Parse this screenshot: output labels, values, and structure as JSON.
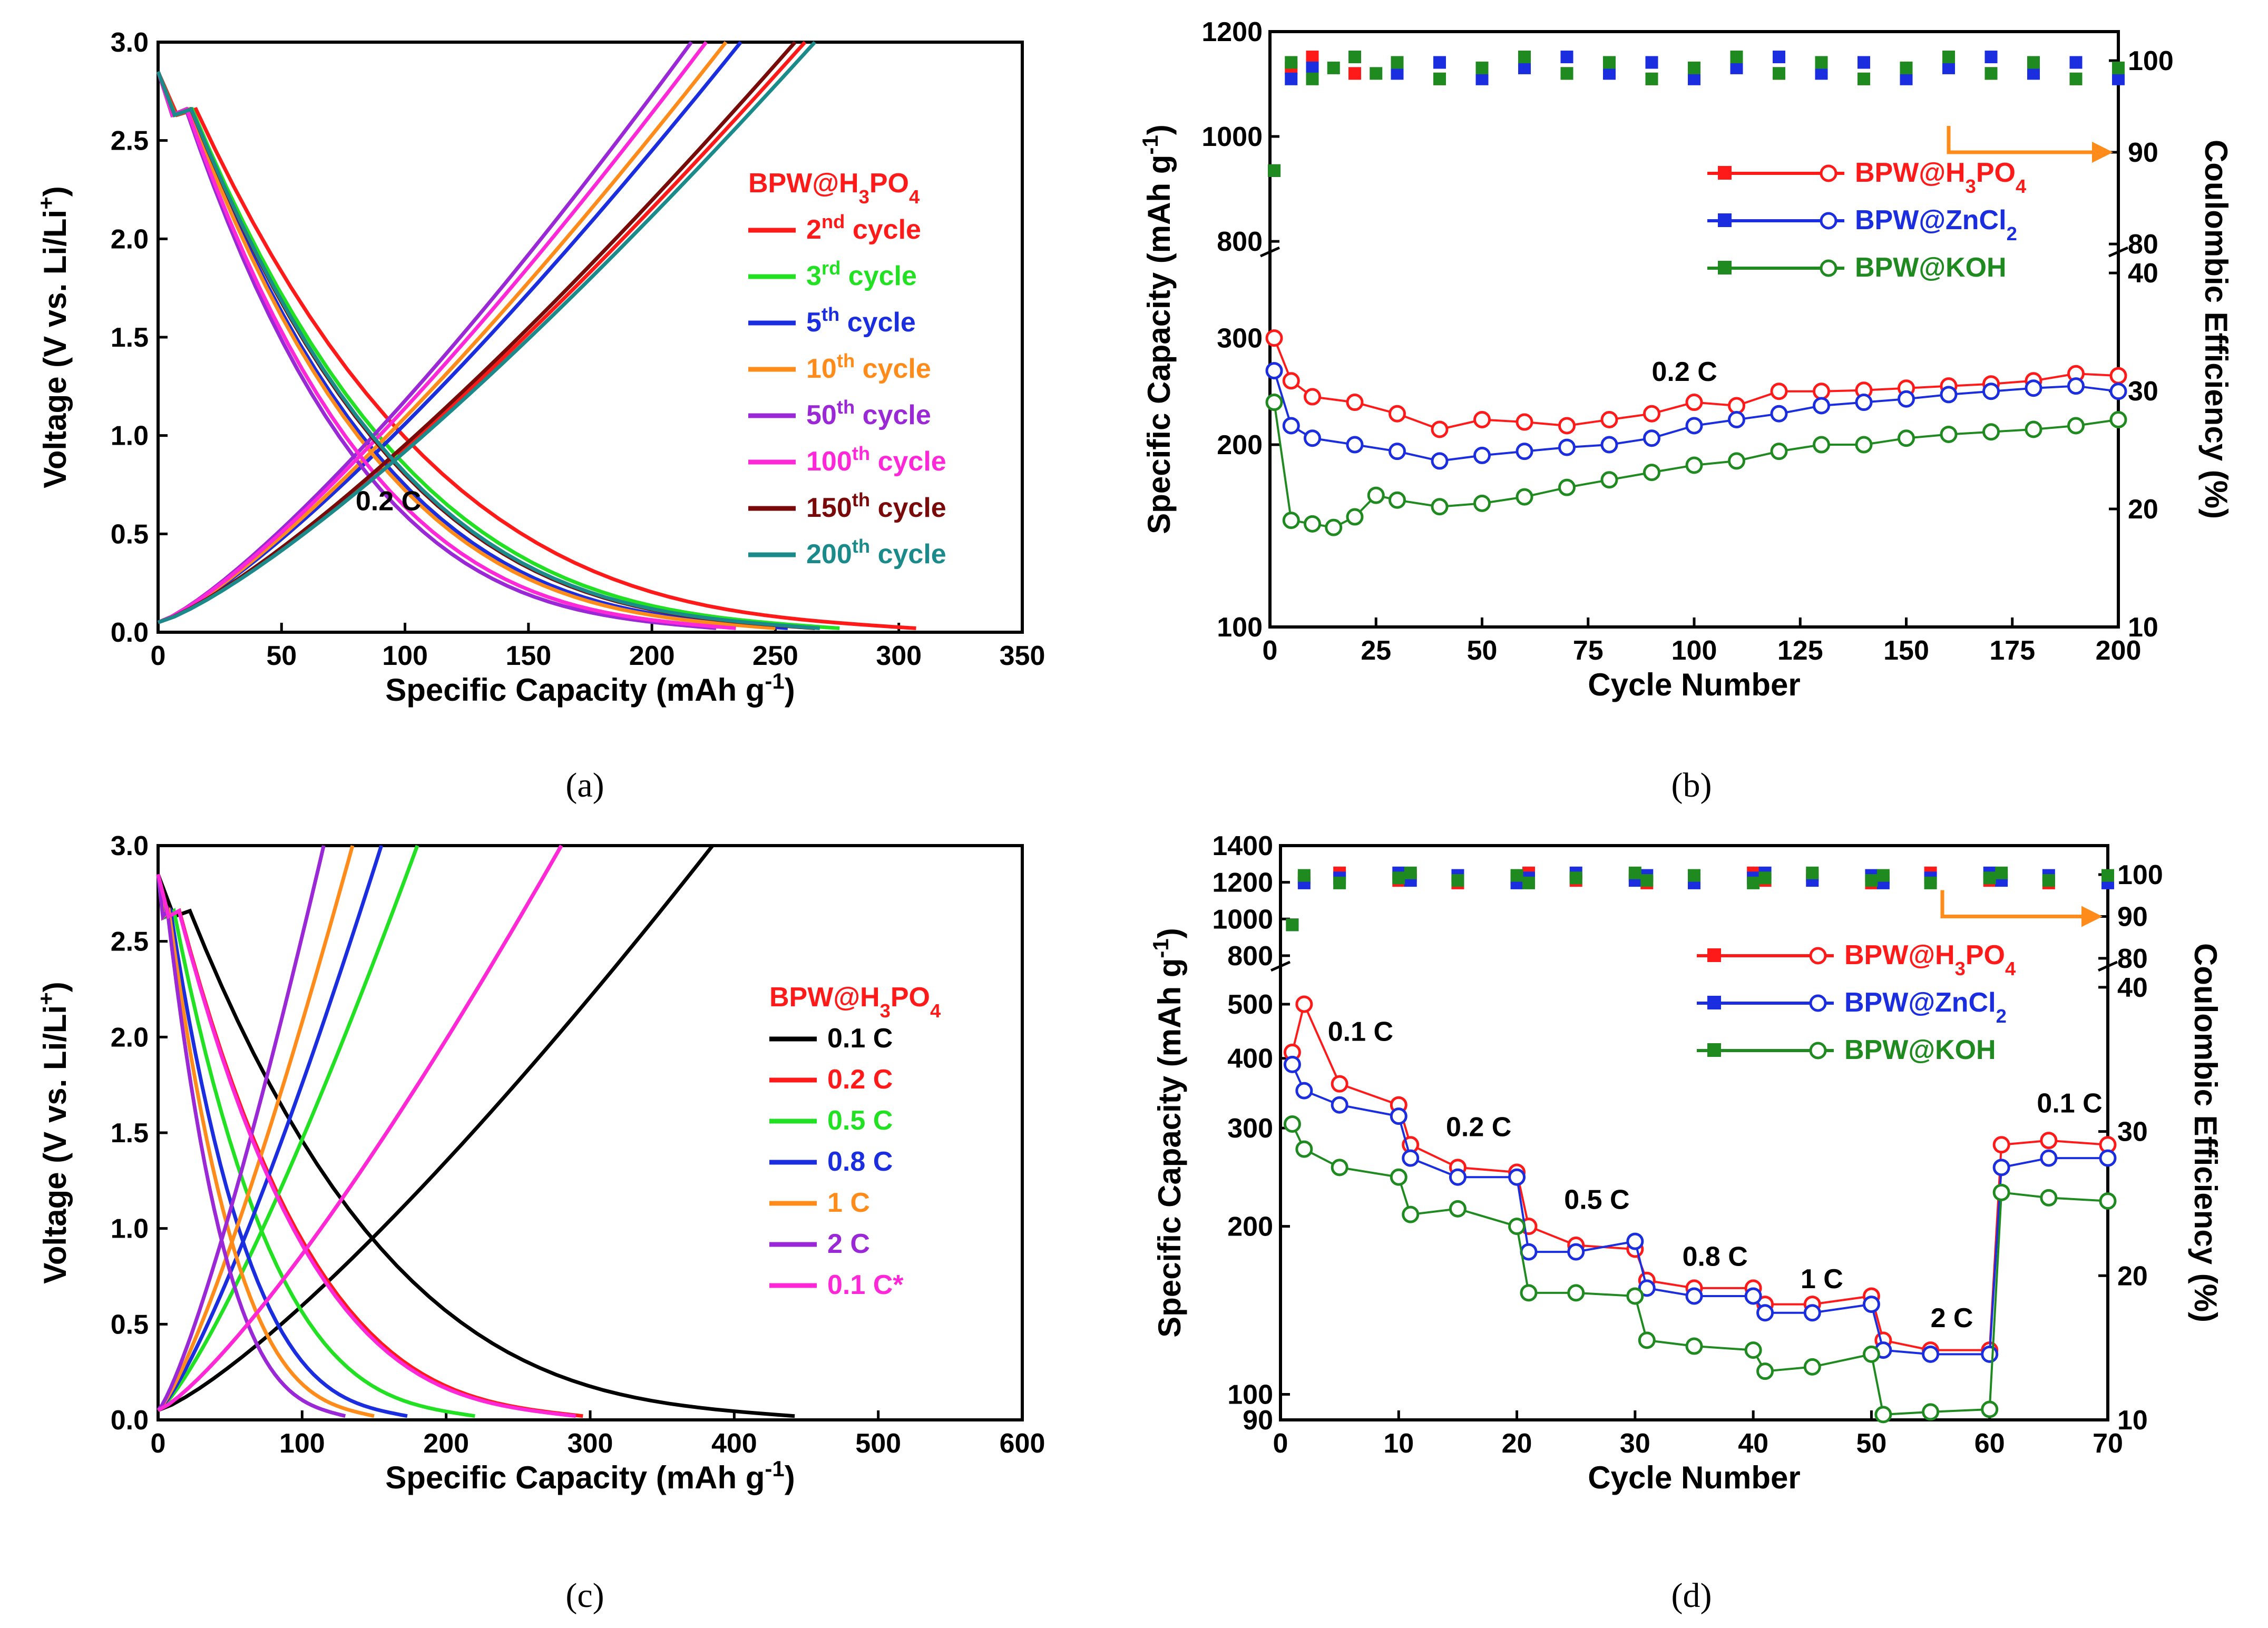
{
  "figure_captions": [
    "(a)",
    "(b)",
    "(c)",
    "(d)"
  ],
  "chart_data": [
    {
      "id": "a",
      "type": "line",
      "xlabel": "Specific Capacity (mAh g-1)",
      "ylabel": "Voltage (V vs. Li/Li+)",
      "xlim": [
        0,
        350
      ],
      "ylim": [
        0,
        3.0
      ],
      "xticks": [
        "0",
        "50",
        "100",
        "150",
        "200",
        "250",
        "300",
        "350"
      ],
      "yticks": [
        "0.0",
        "0.5",
        "1.0",
        "1.5",
        "2.0",
        "2.5",
        "3.0"
      ],
      "legend_title": "BPW@H3PO4",
      "legend_title_color": "#ff1a1a",
      "annotation": "0.2 C",
      "series": [
        {
          "name": "2nd cycle",
          "color": "#ff1a1a",
          "charge_end": 262,
          "discharge_end": 307
        },
        {
          "name": "3rd cycle",
          "color": "#22e022",
          "charge_end": 258,
          "discharge_end": 276
        },
        {
          "name": "5th cycle",
          "color": "#1a2ee0",
          "charge_end": 236,
          "discharge_end": 255
        },
        {
          "name": "10th cycle",
          "color": "#ff8c1a",
          "charge_end": 230,
          "discharge_end": 250
        },
        {
          "name": "50th cycle",
          "color": "#9a28d6",
          "charge_end": 216,
          "discharge_end": 226
        },
        {
          "name": "100th cycle",
          "color": "#ff28d8",
          "charge_end": 222,
          "discharge_end": 234
        },
        {
          "name": "150th cycle",
          "color": "#7a0a0a",
          "charge_end": 258,
          "discharge_end": 266
        },
        {
          "name": "200th cycle",
          "color": "#1a8a8a",
          "charge_end": 266,
          "discharge_end": 268
        }
      ]
    },
    {
      "id": "b",
      "type": "scatter",
      "xlabel": "Cycle Number",
      "ylabel": "Specific Capacity (mAh g-1)",
      "y2label": "Coulombic Efficiency (%)",
      "xlim": [
        0,
        200
      ],
      "ylim": [
        100,
        1200
      ],
      "xticks": [
        "0",
        "25",
        "50",
        "75",
        "100",
        "125",
        "150",
        "175",
        "200"
      ],
      "yticks_left": [
        "100",
        "200",
        "300",
        "800",
        "1000",
        "1200"
      ],
      "yticks_right": [
        "10",
        "20",
        "30",
        "40",
        "80",
        "90",
        "100"
      ],
      "annotation": "0.2 C",
      "series": [
        {
          "name": "BPW@H3PO4",
          "color": "#ff1a1a",
          "points": [
            [
              1,
              300
            ],
            [
              5,
              255
            ],
            [
              10,
              240
            ],
            [
              20,
              235
            ],
            [
              30,
              225
            ],
            [
              40,
              212
            ],
            [
              50,
              220
            ],
            [
              60,
              218
            ],
            [
              70,
              215
            ],
            [
              80,
              220
            ],
            [
              90,
              225
            ],
            [
              100,
              235
            ],
            [
              110,
              232
            ],
            [
              120,
              245
            ],
            [
              130,
              245
            ],
            [
              140,
              246
            ],
            [
              150,
              248
            ],
            [
              160,
              250
            ],
            [
              170,
              252
            ],
            [
              180,
              255
            ],
            [
              190,
              262
            ],
            [
              200,
              260
            ]
          ]
        },
        {
          "name": "BPW@ZnCl2",
          "color": "#1a2ee0",
          "points": [
            [
              1,
              265
            ],
            [
              5,
              215
            ],
            [
              10,
              205
            ],
            [
              20,
              200
            ],
            [
              30,
              195
            ],
            [
              40,
              188
            ],
            [
              50,
              192
            ],
            [
              60,
              195
            ],
            [
              70,
              198
            ],
            [
              80,
              200
            ],
            [
              90,
              205
            ],
            [
              100,
              215
            ],
            [
              110,
              220
            ],
            [
              120,
              225
            ],
            [
              130,
              232
            ],
            [
              140,
              235
            ],
            [
              150,
              238
            ],
            [
              160,
              242
            ],
            [
              170,
              245
            ],
            [
              180,
              248
            ],
            [
              190,
              250
            ],
            [
              200,
              245
            ]
          ]
        },
        {
          "name": "BPW@KOH",
          "color": "#1f8a1f",
          "points": [
            [
              1,
              235
            ],
            [
              5,
              150
            ],
            [
              10,
              148
            ],
            [
              15,
              146
            ],
            [
              20,
              152
            ],
            [
              25,
              165
            ],
            [
              30,
              162
            ],
            [
              40,
              158
            ],
            [
              50,
              160
            ],
            [
              60,
              164
            ],
            [
              70,
              170
            ],
            [
              80,
              175
            ],
            [
              90,
              180
            ],
            [
              100,
              185
            ],
            [
              110,
              188
            ],
            [
              120,
              195
            ],
            [
              130,
              200
            ],
            [
              140,
              200
            ],
            [
              150,
              205
            ],
            [
              160,
              208
            ],
            [
              170,
              210
            ],
            [
              180,
              212
            ],
            [
              190,
              215
            ],
            [
              200,
              220
            ]
          ]
        }
      ]
    },
    {
      "id": "c",
      "type": "line",
      "xlabel": "Specific Capacity (mAh g-1)",
      "ylabel": "Voltage (V vs. Li/Li+)",
      "xlim": [
        0,
        600
      ],
      "ylim": [
        0,
        3.0
      ],
      "xticks": [
        "0",
        "100",
        "200",
        "300",
        "400",
        "500",
        "600"
      ],
      "yticks": [
        "0.0",
        "0.5",
        "1.0",
        "1.5",
        "2.0",
        "2.5",
        "3.0"
      ],
      "legend_title": "BPW@H3PO4",
      "legend_title_color": "#ff1a1a",
      "series": [
        {
          "name": "0.1 C",
          "color": "#000000",
          "charge_end": 385,
          "discharge_end": 442
        },
        {
          "name": "0.2 C",
          "color": "#ff1a1a",
          "charge_end": 280,
          "discharge_end": 295
        },
        {
          "name": "0.5 C",
          "color": "#22e022",
          "charge_end": 180,
          "discharge_end": 220
        },
        {
          "name": "0.8  C",
          "color": "#1a2ee0",
          "charge_end": 155,
          "discharge_end": 173
        },
        {
          "name": "1 C",
          "color": "#ff8c1a",
          "charge_end": 135,
          "discharge_end": 150
        },
        {
          "name": "2 C",
          "color": "#9a28d6",
          "charge_end": 115,
          "discharge_end": 130
        },
        {
          "name": "0.1 C*",
          "color": "#ff28d8",
          "charge_end": 280,
          "discharge_end": 290
        }
      ]
    },
    {
      "id": "d",
      "type": "scatter",
      "xlabel": "Cycle Number",
      "ylabel": "Specific Capacity (mAh g-1)",
      "y2label": "Coulombic Efficiency (%)",
      "xlim": [
        0,
        70
      ],
      "ylim": [
        90,
        1400
      ],
      "xticks": [
        "0",
        "10",
        "20",
        "30",
        "40",
        "50",
        "60",
        "70"
      ],
      "yticks_left": [
        "90",
        "100",
        "200",
        "300",
        "400",
        "500",
        "800",
        "1000",
        "1200",
        "1400"
      ],
      "yticks_right": [
        "10",
        "20",
        "30",
        "40",
        "80",
        "90",
        "100"
      ],
      "rate_labels": [
        "0.1 C",
        "0.2 C",
        "0.5 C",
        "0.8 C",
        "1 C",
        "2 C",
        "0.1 C"
      ],
      "series": [
        {
          "name": "BPW@H3PO4",
          "color": "#ff1a1a",
          "points": [
            [
              1,
              410
            ],
            [
              2,
              500
            ],
            [
              5,
              360
            ],
            [
              10,
              330
            ],
            [
              11,
              280
            ],
            [
              15,
              255
            ],
            [
              20,
              250
            ],
            [
              21,
              200
            ],
            [
              25,
              185
            ],
            [
              30,
              182
            ],
            [
              31,
              160
            ],
            [
              35,
              155
            ],
            [
              40,
              155
            ],
            [
              41,
              145
            ],
            [
              45,
              145
            ],
            [
              50,
              150
            ],
            [
              51,
              125
            ],
            [
              55,
              120
            ],
            [
              60,
              120
            ],
            [
              61,
              280
            ],
            [
              65,
              285
            ],
            [
              70,
              280
            ]
          ]
        },
        {
          "name": "BPW@ZnCl2",
          "color": "#1a2ee0",
          "points": [
            [
              1,
              390
            ],
            [
              2,
              350
            ],
            [
              5,
              330
            ],
            [
              10,
              315
            ],
            [
              11,
              265
            ],
            [
              15,
              245
            ],
            [
              20,
              245
            ],
            [
              21,
              180
            ],
            [
              25,
              180
            ],
            [
              30,
              188
            ],
            [
              31,
              155
            ],
            [
              35,
              150
            ],
            [
              40,
              150
            ],
            [
              41,
              140
            ],
            [
              45,
              140
            ],
            [
              50,
              145
            ],
            [
              51,
              120
            ],
            [
              55,
              118
            ],
            [
              60,
              118
            ],
            [
              61,
              255
            ],
            [
              65,
              265
            ],
            [
              70,
              265
            ]
          ]
        },
        {
          "name": "BPW@KOH",
          "color": "#1f8a1f",
          "points": [
            [
              1,
              305
            ],
            [
              2,
              275
            ],
            [
              5,
              255
            ],
            [
              10,
              245
            ],
            [
              11,
              210
            ],
            [
              15,
              215
            ],
            [
              20,
              200
            ],
            [
              21,
              152
            ],
            [
              25,
              152
            ],
            [
              30,
              150
            ],
            [
              31,
              125
            ],
            [
              35,
              122
            ],
            [
              40,
              120
            ],
            [
              41,
              110
            ],
            [
              45,
              112
            ],
            [
              50,
              118
            ],
            [
              51,
              92
            ],
            [
              55,
              93
            ],
            [
              60,
              94
            ],
            [
              61,
              230
            ],
            [
              65,
              225
            ],
            [
              70,
              222
            ]
          ]
        }
      ]
    }
  ]
}
